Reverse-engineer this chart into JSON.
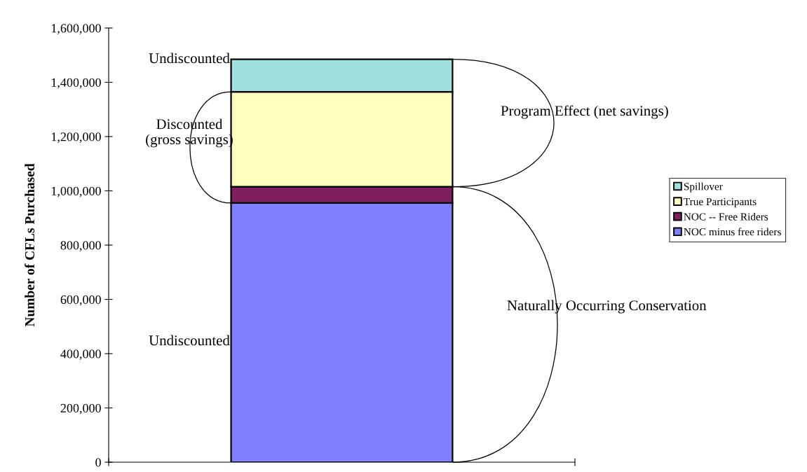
{
  "chart_data": {
    "type": "bar",
    "stacked": true,
    "categories": [
      null
    ],
    "ylabel": "Number of CFLs Purchased",
    "series": [
      {
        "name": "NOC minus free riders",
        "color": "#8080ff",
        "values": [
          955000
        ]
      },
      {
        "name": "NOC -- Free Riders",
        "color": "#7f1f5f",
        "values": [
          60000
        ]
      },
      {
        "name": "True Participants",
        "color": "#ffffc0",
        "values": [
          350000
        ]
      },
      {
        "name": "Spillover",
        "color": "#a0e0e0",
        "values": [
          120000
        ]
      }
    ],
    "ylim": [
      0,
      1600000
    ],
    "yticks": [
      0,
      {
        "value": 200000,
        "label": "200,000"
      },
      {
        "value": 400000,
        "label": "400,000"
      },
      {
        "value": 600000,
        "label": "600,000"
      },
      {
        "value": 800000,
        "label": "800,000"
      },
      {
        "value": 1000000,
        "label": "1,000,000"
      },
      {
        "value": 1200000,
        "label": "1,200,000"
      },
      {
        "value": 1400000,
        "label": "1,400,000"
      },
      {
        "value": 1600000,
        "label": "1,600,000"
      }
    ],
    "grid": false,
    "legend": "right",
    "annotations": [
      "Undiscounted",
      "Discounted\n(gross savings)",
      "Undiscounted",
      "Program Effect (net savings)",
      "Naturally Occurring Conservation"
    ]
  }
}
